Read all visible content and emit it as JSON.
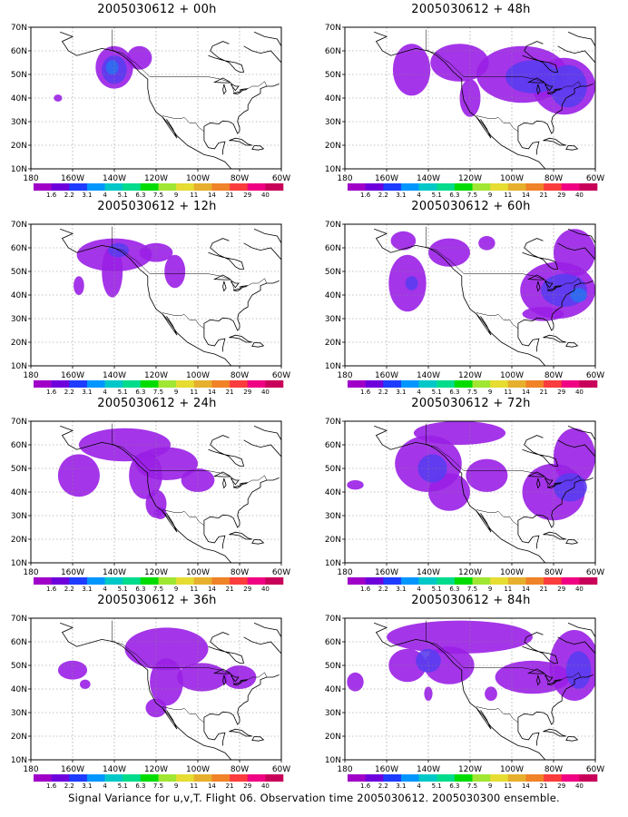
{
  "panels": [
    {
      "title": "2005030612 + 00h",
      "blobs": [
        {
          "lon": -140,
          "lat": 53,
          "rlon": 9,
          "rlat": 9,
          "level": 0
        },
        {
          "lon": -128,
          "lat": 57,
          "rlon": 6,
          "rlat": 5,
          "level": 0
        },
        {
          "lon": -140,
          "lat": 52,
          "rlon": 6,
          "rlat": 6,
          "level": 1
        },
        {
          "lon": -141,
          "lat": 53,
          "rlon": 3,
          "rlat": 3,
          "level": 2
        },
        {
          "lon": -167,
          "lat": 40,
          "rlon": 2,
          "rlat": 1.5,
          "level": 0
        }
      ]
    },
    {
      "title": "2005030612 + 48h",
      "blobs": [
        {
          "lon": -148,
          "lat": 52,
          "rlon": 9,
          "rlat": 11,
          "level": 0
        },
        {
          "lon": -125,
          "lat": 55,
          "rlon": 14,
          "rlat": 8,
          "level": 0
        },
        {
          "lon": -120,
          "lat": 40,
          "rlon": 5,
          "rlat": 8,
          "level": 0
        },
        {
          "lon": -95,
          "lat": 50,
          "rlon": 22,
          "rlat": 12,
          "level": 0
        },
        {
          "lon": -75,
          "lat": 45,
          "rlon": 15,
          "rlat": 12,
          "level": 0
        },
        {
          "lon": -90,
          "lat": 49,
          "rlon": 13,
          "rlat": 7,
          "level": 1
        },
        {
          "lon": -73,
          "lat": 45,
          "rlon": 9,
          "rlat": 9,
          "level": 1
        }
      ]
    },
    {
      "title": "2005030612 + 12h",
      "blobs": [
        {
          "lon": -140,
          "lat": 57,
          "rlon": 18,
          "rlat": 7,
          "level": 0
        },
        {
          "lon": -141,
          "lat": 50,
          "rlon": 5,
          "rlat": 11,
          "level": 0
        },
        {
          "lon": -120,
          "lat": 58,
          "rlon": 8,
          "rlat": 4,
          "level": 0
        },
        {
          "lon": -111,
          "lat": 50,
          "rlon": 5,
          "rlat": 7,
          "level": 0
        },
        {
          "lon": -157,
          "lat": 44,
          "rlon": 2.5,
          "rlat": 4,
          "level": 0
        },
        {
          "lon": -138,
          "lat": 59,
          "rlon": 5,
          "rlat": 3,
          "level": 1
        }
      ]
    },
    {
      "title": "2005030612 + 60h",
      "blobs": [
        {
          "lon": -150,
          "lat": 45,
          "rlon": 9,
          "rlat": 12,
          "level": 0
        },
        {
          "lon": -152,
          "lat": 63,
          "rlon": 6,
          "rlat": 4,
          "level": 0
        },
        {
          "lon": -130,
          "lat": 58,
          "rlon": 10,
          "rlat": 6,
          "level": 0
        },
        {
          "lon": -112,
          "lat": 62,
          "rlon": 4,
          "rlat": 3,
          "level": 0
        },
        {
          "lon": -78,
          "lat": 42,
          "rlon": 18,
          "rlat": 12,
          "level": 0
        },
        {
          "lon": -70,
          "lat": 58,
          "rlon": 10,
          "rlat": 10,
          "level": 0
        },
        {
          "lon": -85,
          "lat": 32,
          "rlon": 10,
          "rlat": 3,
          "level": 0
        },
        {
          "lon": -148,
          "lat": 45,
          "rlon": 3,
          "rlat": 3,
          "level": 1
        },
        {
          "lon": -75,
          "lat": 42,
          "rlon": 11,
          "rlat": 7,
          "level": 1
        },
        {
          "lon": -68,
          "lat": 40,
          "rlon": 4,
          "rlat": 3,
          "level": 2
        }
      ]
    },
    {
      "title": "2005030612 + 24h",
      "blobs": [
        {
          "lon": -135,
          "lat": 60,
          "rlon": 22,
          "rlat": 7,
          "level": 0
        },
        {
          "lon": -157,
          "lat": 47,
          "rlon": 10,
          "rlat": 9,
          "level": 0
        },
        {
          "lon": -125,
          "lat": 47,
          "rlon": 8,
          "rlat": 10,
          "level": 0
        },
        {
          "lon": -115,
          "lat": 52,
          "rlon": 15,
          "rlat": 7,
          "level": 0
        },
        {
          "lon": -120,
          "lat": 35,
          "rlon": 5,
          "rlat": 6,
          "level": 0
        },
        {
          "lon": -100,
          "lat": 45,
          "rlon": 8,
          "rlat": 5,
          "level": 0
        },
        {
          "lon": -118,
          "lat": 31,
          "rlon": 3,
          "rlat": 2.5,
          "level": 0
        }
      ]
    },
    {
      "title": "2005030612 + 72h",
      "blobs": [
        {
          "lon": -140,
          "lat": 52,
          "rlon": 16,
          "rlat": 12,
          "level": 0
        },
        {
          "lon": -125,
          "lat": 65,
          "rlon": 22,
          "rlat": 5,
          "level": 0
        },
        {
          "lon": -130,
          "lat": 40,
          "rlon": 10,
          "rlat": 8,
          "level": 0
        },
        {
          "lon": -112,
          "lat": 47,
          "rlon": 10,
          "rlat": 7,
          "level": 0
        },
        {
          "lon": -80,
          "lat": 40,
          "rlon": 15,
          "rlat": 12,
          "level": 0
        },
        {
          "lon": -70,
          "lat": 55,
          "rlon": 10,
          "rlat": 12,
          "level": 0
        },
        {
          "lon": -175,
          "lat": 43,
          "rlon": 4,
          "rlat": 2,
          "level": 0
        },
        {
          "lon": -138,
          "lat": 50,
          "rlon": 7,
          "rlat": 6,
          "level": 1
        },
        {
          "lon": -72,
          "lat": 42,
          "rlon": 8,
          "rlat": 6,
          "level": 1
        }
      ]
    },
    {
      "title": "2005030612 + 36h",
      "blobs": [
        {
          "lon": -115,
          "lat": 57,
          "rlon": 20,
          "rlat": 9,
          "level": 0
        },
        {
          "lon": -115,
          "lat": 43,
          "rlon": 8,
          "rlat": 10,
          "level": 0
        },
        {
          "lon": -98,
          "lat": 45,
          "rlon": 12,
          "rlat": 6,
          "level": 0
        },
        {
          "lon": -120,
          "lat": 32,
          "rlon": 5,
          "rlat": 4,
          "level": 0
        },
        {
          "lon": -160,
          "lat": 48,
          "rlon": 7,
          "rlat": 4,
          "level": 0
        },
        {
          "lon": -154,
          "lat": 42,
          "rlon": 2.5,
          "rlat": 2,
          "level": 0
        },
        {
          "lon": -80,
          "lat": 45,
          "rlon": 8,
          "rlat": 5,
          "level": 0
        }
      ]
    },
    {
      "title": "2005030612 + 84h",
      "blobs": [
        {
          "lon": -125,
          "lat": 62,
          "rlon": 35,
          "rlat": 7,
          "level": 0
        },
        {
          "lon": -130,
          "lat": 50,
          "rlon": 12,
          "rlat": 8,
          "level": 0
        },
        {
          "lon": -150,
          "lat": 50,
          "rlon": 9,
          "rlat": 7,
          "level": 0
        },
        {
          "lon": -90,
          "lat": 45,
          "rlon": 18,
          "rlat": 7,
          "level": 0
        },
        {
          "lon": -70,
          "lat": 50,
          "rlon": 12,
          "rlat": 15,
          "level": 0
        },
        {
          "lon": -175,
          "lat": 43,
          "rlon": 4,
          "rlat": 4,
          "level": 0
        },
        {
          "lon": -140,
          "lat": 38,
          "rlon": 2,
          "rlat": 3,
          "level": 0
        },
        {
          "lon": -110,
          "lat": 38,
          "rlon": 3,
          "rlat": 3,
          "level": 0
        },
        {
          "lon": -140,
          "lat": 52,
          "rlon": 6,
          "rlat": 5,
          "level": 1
        },
        {
          "lon": -68,
          "lat": 48,
          "rlon": 6,
          "rlat": 8,
          "level": 1
        }
      ]
    }
  ],
  "map": {
    "lon_range": [
      -180,
      -60
    ],
    "lat_range": [
      10,
      70
    ],
    "lon_ticks": [
      -180,
      -160,
      -140,
      -120,
      -100,
      -80,
      -60
    ],
    "lon_tick_labels": [
      "180",
      "160W",
      "140W",
      "120W",
      "100W",
      "80W",
      "60W"
    ],
    "lat_ticks": [
      10,
      20,
      30,
      40,
      50,
      60,
      70
    ],
    "lat_tick_labels": [
      "10N",
      "20N",
      "30N",
      "40N",
      "50N",
      "60N",
      "70N"
    ],
    "grid": "dotted"
  },
  "colorbar": {
    "labels": [
      "1.6",
      "2.2",
      "3.1",
      "4",
      "5.1",
      "6.3",
      "7.5",
      "9",
      "11",
      "14",
      "21",
      "29",
      "40"
    ],
    "colors": [
      "#a000c8",
      "#6e00dc",
      "#1e3cff",
      "#0096ff",
      "#00c8c8",
      "#00dc8c",
      "#00dc00",
      "#a0e632",
      "#e6dc32",
      "#e6af2d",
      "#f08228",
      "#fa3c3c",
      "#f00082",
      "#c8005a"
    ]
  },
  "caption": "Signal Variance for u,v,T. Flight 06. Observation time 2005030612. 2005030300 ensemble."
}
